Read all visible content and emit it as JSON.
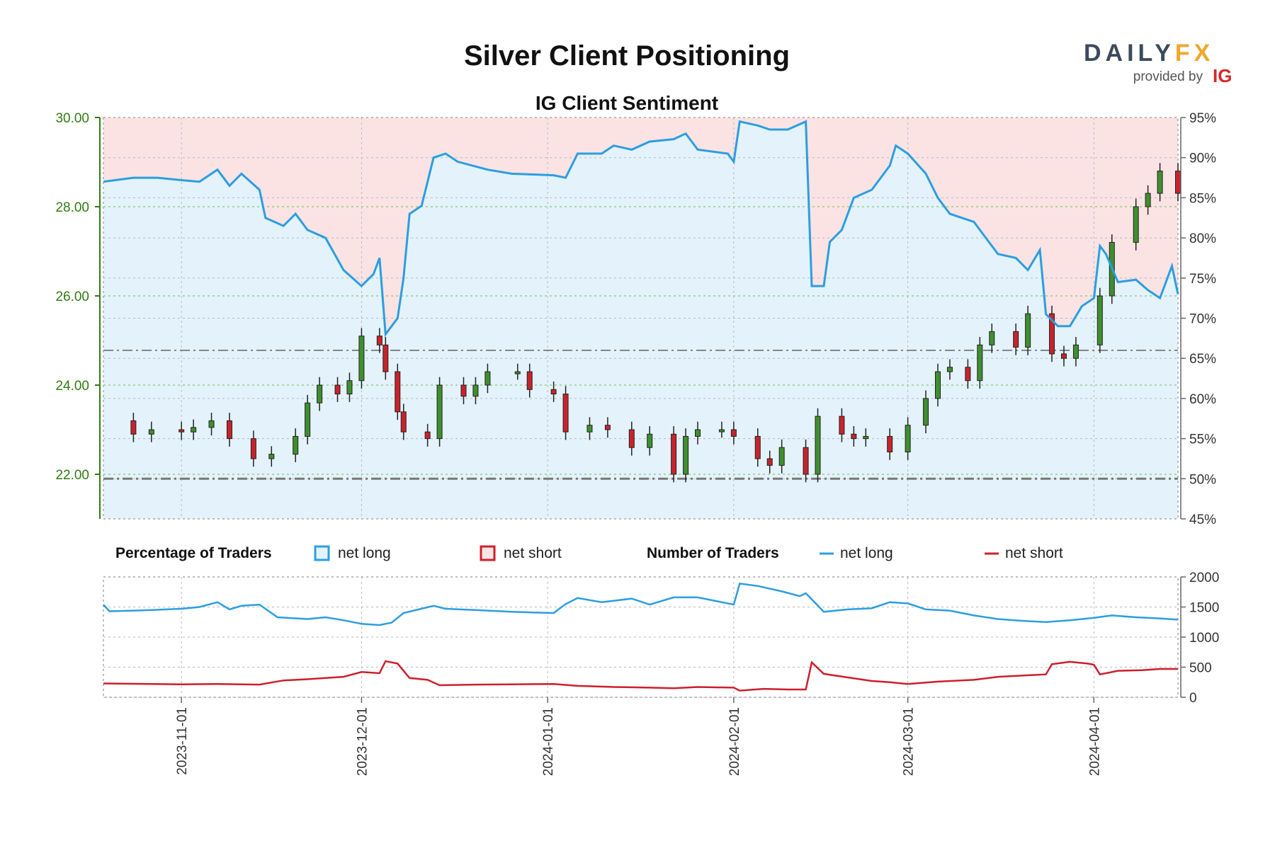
{
  "header": {
    "title": "Silver Client Positioning",
    "subtitle": "IG Client Sentiment",
    "logo_main_a": "DAILY",
    "logo_main_b": "FX",
    "logo_provided": "provided by",
    "logo_ig": "IG"
  },
  "colors": {
    "net_long": "#2b9ee0",
    "net_short": "#cc1f2d",
    "long_fill": "#e4f2fb",
    "short_fill": "#fbe3e3",
    "candle_up": "#3f8f2f",
    "candle_down": "#c8232c",
    "left_axis": "#2e7d12"
  },
  "legend": {
    "pct_heading": "Percentage of Traders",
    "pct_long": "net long",
    "pct_short": "net short",
    "num_heading": "Number of Traders",
    "num_long": "net long",
    "num_short": "net short"
  },
  "chart_data": [
    {
      "type": "candlestick",
      "title": "IG Client Sentiment",
      "y_left_ticks": [
        "22.00",
        "24.00",
        "26.00",
        "28.00",
        "30.00"
      ],
      "y_left_lim": [
        21.0,
        30.0
      ],
      "y_right_ticks": [
        "45%",
        "50%",
        "55%",
        "60%",
        "65%",
        "70%",
        "75%",
        "80%",
        "85%",
        "90%",
        "95%"
      ],
      "y_right_lim": [
        45,
        95
      ],
      "x_ticks": [
        "2023-11-01",
        "2023-12-01",
        "2024-01-01",
        "2024-02-01",
        "2024-03-01",
        "2024-04-01"
      ],
      "x_range": [
        "2023-10-19",
        "2024-04-15"
      ],
      "reference_lines_pct": [
        50,
        66
      ],
      "price_close": [
        [
          "2023-10-19",
          23.2
        ],
        [
          "2023-10-24",
          22.9
        ],
        [
          "2023-10-27",
          23.0
        ],
        [
          "2023-11-01",
          22.95
        ],
        [
          "2023-11-03",
          23.05
        ],
        [
          "2023-11-06",
          23.2
        ],
        [
          "2023-11-09",
          22.8
        ],
        [
          "2023-11-13",
          22.35
        ],
        [
          "2023-11-16",
          22.45
        ],
        [
          "2023-11-20",
          22.85
        ],
        [
          "2023-11-22",
          23.6
        ],
        [
          "2023-11-24",
          24.0
        ],
        [
          "2023-11-27",
          23.8
        ],
        [
          "2023-11-29",
          24.1
        ],
        [
          "2023-12-01",
          25.1
        ],
        [
          "2023-12-04",
          24.9
        ],
        [
          "2023-12-05",
          24.3
        ],
        [
          "2023-12-07",
          23.4
        ],
        [
          "2023-12-08",
          22.95
        ],
        [
          "2023-12-12",
          22.8
        ],
        [
          "2023-12-14",
          24.0
        ],
        [
          "2023-12-18",
          23.75
        ],
        [
          "2023-12-20",
          24.0
        ],
        [
          "2023-12-22",
          24.3
        ],
        [
          "2023-12-27",
          24.3
        ],
        [
          "2023-12-29",
          23.9
        ],
        [
          "2024-01-02",
          23.8
        ],
        [
          "2024-01-04",
          22.95
        ],
        [
          "2024-01-08",
          23.1
        ],
        [
          "2024-01-11",
          23.0
        ],
        [
          "2024-01-15",
          22.6
        ],
        [
          "2024-01-18",
          22.9
        ],
        [
          "2024-01-22",
          22.0
        ],
        [
          "2024-01-24",
          22.85
        ],
        [
          "2024-01-26",
          23.0
        ],
        [
          "2024-01-30",
          23.0
        ],
        [
          "2024-02-01",
          22.85
        ],
        [
          "2024-02-05",
          22.35
        ],
        [
          "2024-02-07",
          22.2
        ],
        [
          "2024-02-09",
          22.6
        ],
        [
          "2024-02-13",
          22.0
        ],
        [
          "2024-02-15",
          23.3
        ],
        [
          "2024-02-19",
          22.9
        ],
        [
          "2024-02-21",
          22.8
        ],
        [
          "2024-02-23",
          22.85
        ],
        [
          "2024-02-27",
          22.5
        ],
        [
          "2024-03-01",
          23.1
        ],
        [
          "2024-03-04",
          23.7
        ],
        [
          "2024-03-06",
          24.3
        ],
        [
          "2024-03-08",
          24.4
        ],
        [
          "2024-03-11",
          24.1
        ],
        [
          "2024-03-13",
          24.9
        ],
        [
          "2024-03-15",
          25.2
        ],
        [
          "2024-03-19",
          24.85
        ],
        [
          "2024-03-21",
          25.6
        ],
        [
          "2024-03-25",
          24.7
        ],
        [
          "2024-03-27",
          24.6
        ],
        [
          "2024-03-29",
          24.9
        ],
        [
          "2024-04-02",
          26.0
        ],
        [
          "2024-04-04",
          27.2
        ],
        [
          "2024-04-08",
          28.0
        ],
        [
          "2024-04-10",
          28.3
        ],
        [
          "2024-04-12",
          28.8
        ],
        [
          "2024-04-15",
          28.3
        ]
      ],
      "net_long_pct": [
        [
          "2023-10-19",
          87
        ],
        [
          "2023-10-24",
          87.5
        ],
        [
          "2023-10-28",
          87.5
        ],
        [
          "2023-11-01",
          87.2
        ],
        [
          "2023-11-04",
          87.0
        ],
        [
          "2023-11-07",
          88.5
        ],
        [
          "2023-11-09",
          86.5
        ],
        [
          "2023-11-11",
          88.0
        ],
        [
          "2023-11-14",
          86.0
        ],
        [
          "2023-11-15",
          82.5
        ],
        [
          "2023-11-18",
          81.5
        ],
        [
          "2023-11-20",
          83.0
        ],
        [
          "2023-11-22",
          81.0
        ],
        [
          "2023-11-25",
          80.0
        ],
        [
          "2023-11-28",
          76.0
        ],
        [
          "2023-12-01",
          74.0
        ],
        [
          "2023-12-03",
          75.5
        ],
        [
          "2023-12-04",
          77.5
        ],
        [
          "2023-12-05",
          68.0
        ],
        [
          "2023-12-07",
          70.0
        ],
        [
          "2023-12-08",
          75.0
        ],
        [
          "2023-12-09",
          83.0
        ],
        [
          "2023-12-11",
          84.0
        ],
        [
          "2023-12-13",
          90.0
        ],
        [
          "2023-12-15",
          90.5
        ],
        [
          "2023-12-17",
          89.5
        ],
        [
          "2023-12-22",
          88.5
        ],
        [
          "2023-12-26",
          88.0
        ],
        [
          "2024-01-02",
          87.8
        ],
        [
          "2024-01-04",
          87.5
        ],
        [
          "2024-01-06",
          90.5
        ],
        [
          "2024-01-10",
          90.5
        ],
        [
          "2024-01-12",
          91.5
        ],
        [
          "2024-01-15",
          91.0
        ],
        [
          "2024-01-18",
          92.0
        ],
        [
          "2024-01-22",
          92.3
        ],
        [
          "2024-01-24",
          93.0
        ],
        [
          "2024-01-26",
          91.0
        ],
        [
          "2024-01-31",
          90.5
        ],
        [
          "2024-02-01",
          89.5
        ],
        [
          "2024-02-02",
          94.5
        ],
        [
          "2024-02-05",
          94.0
        ],
        [
          "2024-02-07",
          93.5
        ],
        [
          "2024-02-10",
          93.5
        ],
        [
          "2024-02-13",
          94.5
        ],
        [
          "2024-02-14",
          74.0
        ],
        [
          "2024-02-16",
          74.0
        ],
        [
          "2024-02-17",
          79.5
        ],
        [
          "2024-02-19",
          81.0
        ],
        [
          "2024-02-21",
          85.0
        ],
        [
          "2024-02-24",
          86.0
        ],
        [
          "2024-02-27",
          89.0
        ],
        [
          "2024-02-28",
          91.5
        ],
        [
          "2024-03-01",
          90.5
        ],
        [
          "2024-03-04",
          88.0
        ],
        [
          "2024-03-06",
          85.0
        ],
        [
          "2024-03-08",
          83.0
        ],
        [
          "2024-03-12",
          82.0
        ],
        [
          "2024-03-14",
          80.0
        ],
        [
          "2024-03-16",
          78.0
        ],
        [
          "2024-03-19",
          77.5
        ],
        [
          "2024-03-21",
          76.0
        ],
        [
          "2024-03-23",
          78.5
        ],
        [
          "2024-03-24",
          70.5
        ],
        [
          "2024-03-26",
          69.0
        ],
        [
          "2024-03-28",
          69.0
        ],
        [
          "2024-03-30",
          71.5
        ],
        [
          "2024-04-01",
          72.5
        ],
        [
          "2024-04-02",
          79.0
        ],
        [
          "2024-04-03",
          78.0
        ],
        [
          "2024-04-05",
          74.5
        ],
        [
          "2024-04-08",
          74.8
        ],
        [
          "2024-04-10",
          73.5
        ],
        [
          "2024-04-12",
          72.5
        ],
        [
          "2024-04-14",
          76.5
        ],
        [
          "2024-04-15",
          73.0
        ]
      ]
    },
    {
      "type": "line",
      "title": "Number of Traders",
      "y_ticks": [
        "0",
        "500",
        "1000",
        "1500",
        "2000"
      ],
      "ylim": [
        0,
        2000
      ],
      "series": [
        {
          "name": "net long",
          "points": [
            [
              "2023-10-19",
              1540
            ],
            [
              "2023-10-20",
              1430
            ],
            [
              "2023-10-24",
              1440
            ],
            [
              "2023-10-27",
              1450
            ],
            [
              "2023-11-01",
              1470
            ],
            [
              "2023-11-04",
              1500
            ],
            [
              "2023-11-07",
              1580
            ],
            [
              "2023-11-09",
              1460
            ],
            [
              "2023-11-11",
              1520
            ],
            [
              "2023-11-14",
              1540
            ],
            [
              "2023-11-17",
              1330
            ],
            [
              "2023-11-22",
              1300
            ],
            [
              "2023-11-25",
              1330
            ],
            [
              "2023-11-28",
              1280
            ],
            [
              "2023-12-01",
              1220
            ],
            [
              "2023-12-04",
              1200
            ],
            [
              "2023-12-06",
              1240
            ],
            [
              "2023-12-08",
              1400
            ],
            [
              "2023-12-13",
              1520
            ],
            [
              "2023-12-15",
              1470
            ],
            [
              "2023-12-20",
              1450
            ],
            [
              "2023-12-26",
              1420
            ],
            [
              "2024-01-02",
              1400
            ],
            [
              "2024-01-04",
              1550
            ],
            [
              "2024-01-06",
              1650
            ],
            [
              "2024-01-10",
              1580
            ],
            [
              "2024-01-15",
              1640
            ],
            [
              "2024-01-18",
              1540
            ],
            [
              "2024-01-22",
              1660
            ],
            [
              "2024-01-26",
              1660
            ],
            [
              "2024-02-01",
              1540
            ],
            [
              "2024-02-02",
              1890
            ],
            [
              "2024-02-05",
              1850
            ],
            [
              "2024-02-09",
              1760
            ],
            [
              "2024-02-12",
              1680
            ],
            [
              "2024-02-13",
              1730
            ],
            [
              "2024-02-16",
              1420
            ],
            [
              "2024-02-20",
              1460
            ],
            [
              "2024-02-24",
              1480
            ],
            [
              "2024-02-27",
              1580
            ],
            [
              "2024-03-01",
              1560
            ],
            [
              "2024-03-04",
              1460
            ],
            [
              "2024-03-08",
              1440
            ],
            [
              "2024-03-12",
              1360
            ],
            [
              "2024-03-16",
              1300
            ],
            [
              "2024-03-20",
              1270
            ],
            [
              "2024-03-24",
              1250
            ],
            [
              "2024-03-28",
              1280
            ],
            [
              "2024-04-01",
              1320
            ],
            [
              "2024-04-04",
              1360
            ],
            [
              "2024-04-08",
              1330
            ],
            [
              "2024-04-12",
              1310
            ],
            [
              "2024-04-15",
              1290
            ]
          ]
        },
        {
          "name": "net short",
          "points": [
            [
              "2023-10-19",
              230
            ],
            [
              "2023-10-27",
              220
            ],
            [
              "2023-11-01",
              215
            ],
            [
              "2023-11-07",
              220
            ],
            [
              "2023-11-14",
              210
            ],
            [
              "2023-11-18",
              280
            ],
            [
              "2023-11-22",
              300
            ],
            [
              "2023-11-25",
              320
            ],
            [
              "2023-11-28",
              340
            ],
            [
              "2023-12-01",
              420
            ],
            [
              "2023-12-04",
              400
            ],
            [
              "2023-12-05",
              600
            ],
            [
              "2023-12-07",
              560
            ],
            [
              "2023-12-09",
              320
            ],
            [
              "2023-12-12",
              290
            ],
            [
              "2023-12-14",
              200
            ],
            [
              "2023-12-20",
              210
            ],
            [
              "2023-12-26",
              215
            ],
            [
              "2024-01-02",
              220
            ],
            [
              "2024-01-06",
              190
            ],
            [
              "2024-01-12",
              170
            ],
            [
              "2024-01-18",
              160
            ],
            [
              "2024-01-22",
              150
            ],
            [
              "2024-01-26",
              170
            ],
            [
              "2024-02-01",
              160
            ],
            [
              "2024-02-02",
              110
            ],
            [
              "2024-02-06",
              140
            ],
            [
              "2024-02-10",
              130
            ],
            [
              "2024-02-13",
              130
            ],
            [
              "2024-02-14",
              580
            ],
            [
              "2024-02-16",
              390
            ],
            [
              "2024-02-20",
              330
            ],
            [
              "2024-02-24",
              270
            ],
            [
              "2024-02-27",
              250
            ],
            [
              "2024-03-01",
              220
            ],
            [
              "2024-03-06",
              260
            ],
            [
              "2024-03-12",
              290
            ],
            [
              "2024-03-16",
              340
            ],
            [
              "2024-03-20",
              360
            ],
            [
              "2024-03-24",
              380
            ],
            [
              "2024-03-25",
              550
            ],
            [
              "2024-03-28",
              590
            ],
            [
              "2024-03-31",
              560
            ],
            [
              "2024-04-01",
              540
            ],
            [
              "2024-04-02",
              380
            ],
            [
              "2024-04-05",
              440
            ],
            [
              "2024-04-09",
              450
            ],
            [
              "2024-04-12",
              470
            ],
            [
              "2024-04-15",
              470
            ]
          ]
        }
      ]
    }
  ]
}
